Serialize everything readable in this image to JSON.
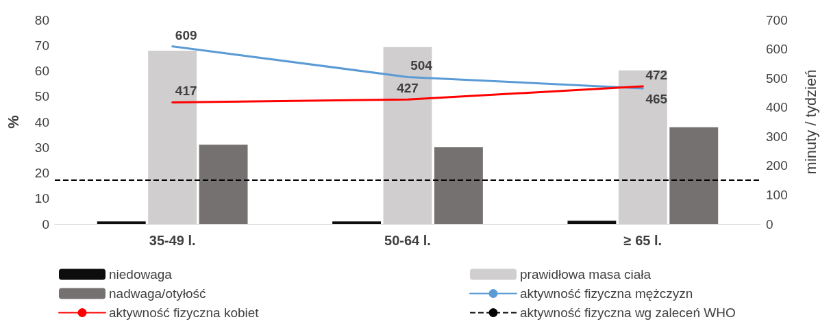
{
  "chart_data": {
    "type": "bar",
    "ylabel": "%",
    "y2label": "minuty / tydzień",
    "categories": [
      "35-49 l.",
      "50-64 l.",
      "≥ 65 l."
    ],
    "series": [
      {
        "name": "niedowaga",
        "color": "#0d0d0d",
        "values": [
          1.0,
          1.0,
          1.3
        ]
      },
      {
        "name": "prawidłowa masa ciała",
        "color": "#d0cece",
        "values": [
          67.9,
          69.3,
          60.2
        ]
      },
      {
        "name": "nadwaga/otyłość",
        "color": "#767171",
        "values": [
          31.1,
          30.1,
          37.9
        ]
      },
      {
        "name": "aktywność fizyczna mężczyzn",
        "type": "line",
        "axis": "y2",
        "color": "#5b9bd5",
        "values": [
          609,
          504,
          465
        ],
        "value_labels": [
          "609",
          "504",
          "465"
        ]
      },
      {
        "name": "aktywność fizyczna kobiet",
        "type": "line",
        "axis": "y2",
        "color": "#ff0000",
        "values": [
          417,
          427,
          472
        ],
        "value_labels": [
          "417",
          "427",
          "472"
        ]
      }
    ],
    "ref_lines": [
      {
        "axis": "y2",
        "value": 150,
        "label": "aktywność fizyczna wg zaleceń WHO",
        "color": "#000000",
        "line_style": "dashed"
      }
    ],
    "ylim": [
      0,
      80
    ],
    "yticks": [
      0,
      10,
      20,
      30,
      40,
      50,
      60,
      70,
      80
    ],
    "y2lim": [
      0,
      700
    ],
    "y2ticks": [
      0,
      100,
      200,
      300,
      400,
      500,
      600,
      700
    ],
    "grid": false,
    "legend": "bottom",
    "marker": "none"
  }
}
